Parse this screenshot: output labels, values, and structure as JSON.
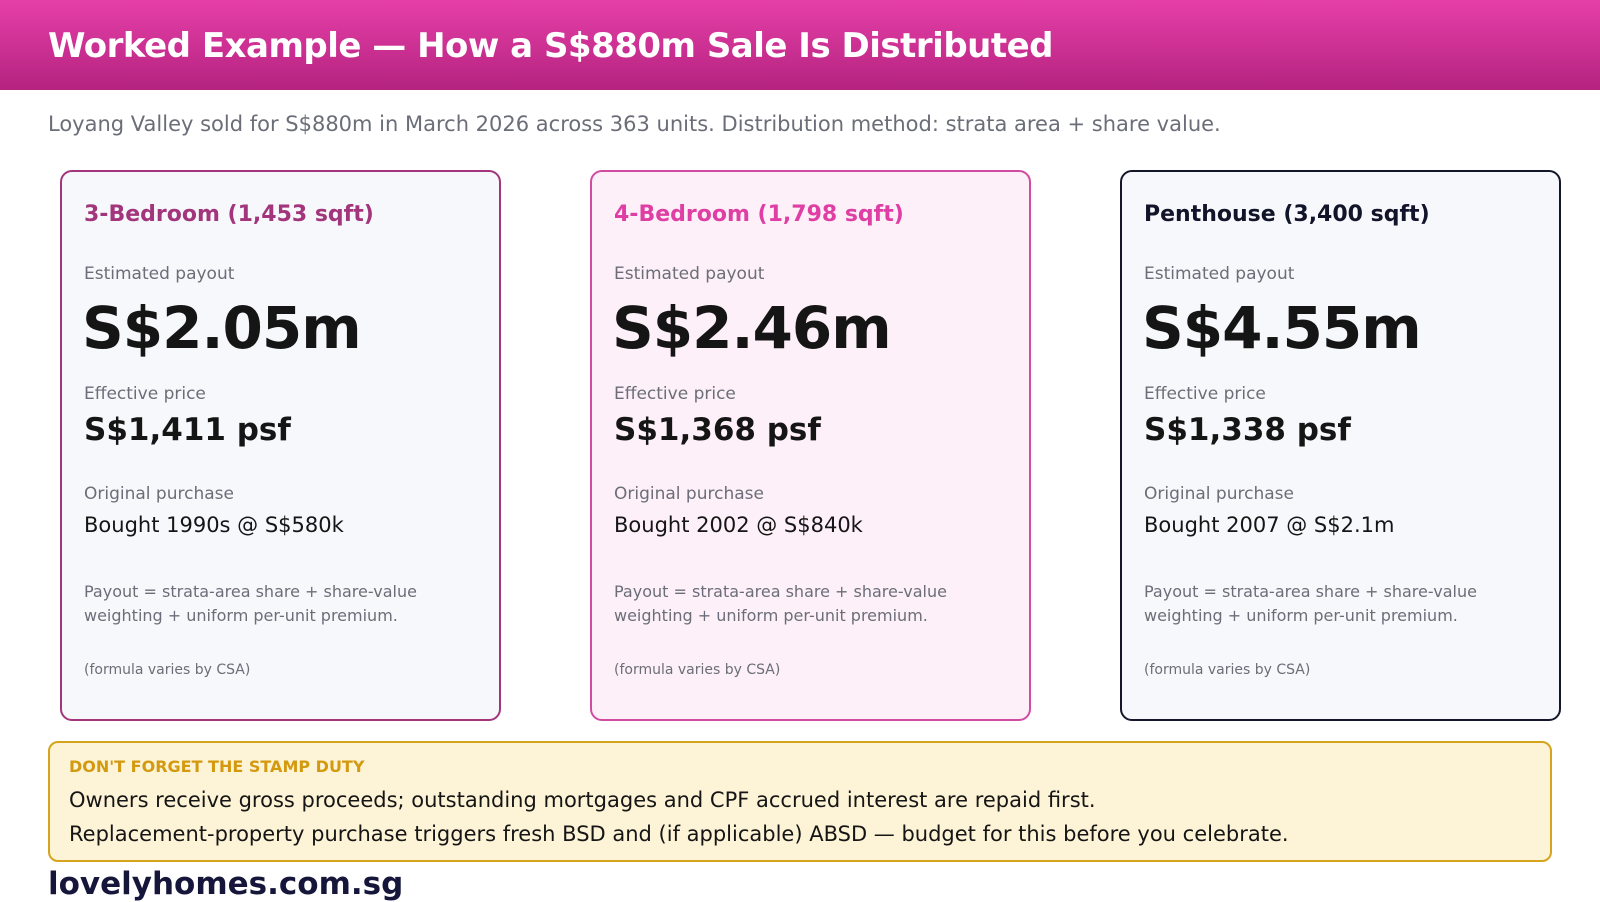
{
  "header": {
    "title": "Worked Example — How a S$880m Sale Is Distributed"
  },
  "subtitle": "Loyang Valley sold for S$880m in March 2026 across 363 units. Distribution method: strata area + share value.",
  "cards": [
    {
      "title": "3-Bedroom (1,453 sqft)",
      "payout_label": "Estimated payout",
      "payout": "S$2.05m",
      "psf_label": "Effective price",
      "psf": "S$1,411 psf",
      "purchase_label": "Original purchase",
      "purchase": "Bought 1990s @ S$580k",
      "formula": "Payout = strata-area share + share-value weighting + uniform per-unit premium.",
      "note": "(formula varies by CSA)"
    },
    {
      "title": "4-Bedroom (1,798 sqft)",
      "payout_label": "Estimated payout",
      "payout": "S$2.46m",
      "psf_label": "Effective price",
      "psf": "S$1,368 psf",
      "purchase_label": "Original purchase",
      "purchase": "Bought 2002 @ S$840k",
      "formula": "Payout = strata-area share + share-value weighting + uniform per-unit premium.",
      "note": "(formula varies by CSA)"
    },
    {
      "title": "Penthouse (3,400 sqft)",
      "payout_label": "Estimated payout",
      "payout": "S$4.55m",
      "psf_label": "Effective price",
      "psf": "S$1,338 psf",
      "purchase_label": "Original purchase",
      "purchase": "Bought 2007 @ S$2.1m",
      "formula": "Payout = strata-area share + share-value weighting + uniform per-unit premium.",
      "note": "(formula varies by CSA)"
    }
  ],
  "alert": {
    "title": "DON'T FORGET THE STAMP DUTY",
    "line1": "Owners receive gross proceeds; outstanding mortgages and CPF accrued interest are repaid first.",
    "line2": "Replacement-property purchase triggers fresh BSD and (if applicable) ABSD — budget for this before you celebrate."
  },
  "footer": {
    "brand": "lovelyhomes.com.sg"
  },
  "colors": {
    "header_top": "#e63fa8",
    "header_bottom": "#b4237f",
    "card1_accent": "#a2357c",
    "card2_accent": "#df3fa4",
    "card3_accent": "#12142a",
    "alert_border": "#d5a41c",
    "alert_bg": "#fdf3d6",
    "alert_title": "#d39a10"
  }
}
